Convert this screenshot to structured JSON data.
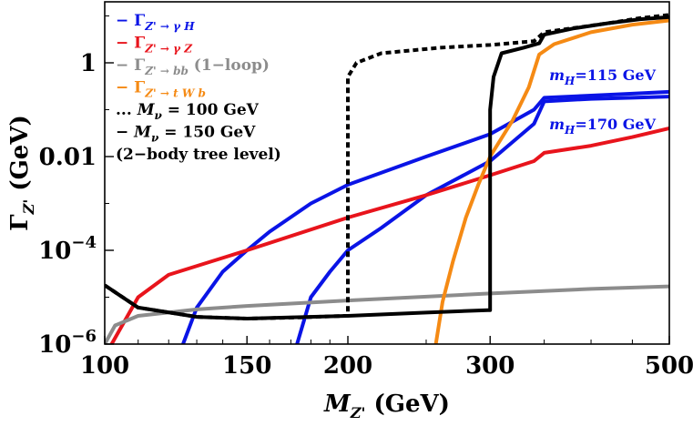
{
  "chart_data": {
    "type": "line",
    "xlabel": "M",
    "xlabel_sub": "Z'",
    "xlabel_unit": " (GeV)",
    "ylabel": "Γ",
    "ylabel_sub": "Z'",
    "ylabel_unit": " (GeV)",
    "x_scale": "log",
    "y_scale": "log",
    "xlim": [
      100,
      500
    ],
    "ylim": [
      1e-06,
      20
    ],
    "x_ticks": [
      {
        "value": 100,
        "label": "100"
      },
      {
        "value": 150,
        "label": "150"
      },
      {
        "value": 200,
        "label": "200"
      },
      {
        "value": 300,
        "label": "300"
      },
      {
        "value": 500,
        "label": "500"
      }
    ],
    "y_ticks": [
      {
        "value": 1e-06,
        "base": "10",
        "exp": "−6"
      },
      {
        "value": 0.0001,
        "base": "10",
        "exp": "−4"
      },
      {
        "value": 0.01,
        "label": "0.01"
      },
      {
        "value": 1,
        "label": "1"
      }
    ],
    "grid": false,
    "legend_position": "top-left",
    "legend": [
      {
        "marker": "−",
        "symbol": "Γ",
        "sub": "Z' → γ H",
        "text": "",
        "color": "#0a14e6"
      },
      {
        "marker": "−",
        "symbol": "Γ",
        "sub": "Z' → γ Z",
        "text": "",
        "color": "#e8141c"
      },
      {
        "marker": "−",
        "symbol": "Γ",
        "sub": "Z' → bb",
        "text": " (1−loop)",
        "color": "#8c8c8c"
      },
      {
        "marker": "−",
        "symbol": "Γ",
        "sub": "Z' → t W b",
        "text": "",
        "color": "#f58a14"
      },
      {
        "marker": "...",
        "symbol": "M",
        "sub": "ν",
        "text": " = 100 GeV",
        "color": "#000000"
      },
      {
        "marker": "−",
        "symbol": "M",
        "sub": "ν",
        "text": " = 150 GeV",
        "color": "#000000"
      },
      {
        "marker": "",
        "symbol": "",
        "sub": "",
        "text": "(2−body tree level)",
        "color": "#000000"
      }
    ],
    "annotations": [
      {
        "symbol": "m",
        "sub": "H",
        "text": "=115 GeV",
        "x": 355,
        "y": 0.43,
        "color": "#0a14e6"
      },
      {
        "symbol": "m",
        "sub": "H",
        "text": "=170 GeV",
        "x": 355,
        "y": 0.038,
        "color": "#0a14e6"
      }
    ],
    "series": [
      {
        "name": "Γ Z'→γH, mH=115 GeV",
        "color": "#0a14e6",
        "style": "solid",
        "points": [
          [
            125,
            1e-06
          ],
          [
            130,
            6e-06
          ],
          [
            140,
            3.5e-05
          ],
          [
            150,
            0.0001
          ],
          [
            160,
            0.00025
          ],
          [
            180,
            0.001
          ],
          [
            200,
            0.0025
          ],
          [
            250,
            0.01
          ],
          [
            300,
            0.03
          ],
          [
            340,
            0.1
          ],
          [
            350,
            0.18
          ],
          [
            400,
            0.2
          ],
          [
            450,
            0.22
          ],
          [
            500,
            0.24
          ]
        ]
      },
      {
        "name": "Γ Z'→γH, mH=170 GeV",
        "color": "#0a14e6",
        "style": "solid",
        "points": [
          [
            173,
            1e-06
          ],
          [
            180,
            1e-05
          ],
          [
            190,
            3.5e-05
          ],
          [
            200,
            0.0001
          ],
          [
            220,
            0.0003
          ],
          [
            250,
            0.0015
          ],
          [
            300,
            0.008
          ],
          [
            340,
            0.05
          ],
          [
            350,
            0.15
          ],
          [
            400,
            0.17
          ],
          [
            450,
            0.18
          ],
          [
            500,
            0.19
          ]
        ]
      },
      {
        "name": "Γ Z'→γZ",
        "color": "#e8141c",
        "style": "solid",
        "points": [
          [
            102,
            1e-06
          ],
          [
            110,
            1e-05
          ],
          [
            120,
            3e-05
          ],
          [
            150,
            0.0001
          ],
          [
            200,
            0.0005
          ],
          [
            250,
            0.0015
          ],
          [
            300,
            0.004
          ],
          [
            340,
            0.008
          ],
          [
            350,
            0.012
          ],
          [
            400,
            0.017
          ],
          [
            450,
            0.026
          ],
          [
            500,
            0.04
          ]
        ]
      },
      {
        "name": "Γ Z'→bb (1-loop)",
        "color": "#8c8c8c",
        "style": "solid",
        "points": [
          [
            100,
            1e-06
          ],
          [
            103,
            2.5e-06
          ],
          [
            110,
            4e-06
          ],
          [
            130,
            5.5e-06
          ],
          [
            150,
            6.5e-06
          ],
          [
            200,
            8.5e-06
          ],
          [
            300,
            1.2e-05
          ],
          [
            400,
            1.5e-05
          ],
          [
            500,
            1.7e-05
          ]
        ]
      },
      {
        "name": "Γ Z'→tWb",
        "color": "#f58a14",
        "style": "solid",
        "points": [
          [
            257,
            1e-06
          ],
          [
            262,
            8e-06
          ],
          [
            270,
            6e-05
          ],
          [
            280,
            0.0005
          ],
          [
            290,
            0.0025
          ],
          [
            300,
            0.01
          ],
          [
            320,
            0.06
          ],
          [
            335,
            0.3
          ],
          [
            345,
            1.5
          ],
          [
            360,
            2.5
          ],
          [
            400,
            4.5
          ],
          [
            450,
            6.5
          ],
          [
            500,
            8
          ]
        ]
      },
      {
        "name": "M_ν = 100 GeV",
        "color": "#000000",
        "style": "dashed",
        "points": [
          [
            100,
            1.8e-05
          ],
          [
            110,
            6e-06
          ],
          [
            130,
            3.8e-06
          ],
          [
            150,
            3.5e-06
          ],
          [
            175,
            3.7e-06
          ],
          [
            198,
            4e-06
          ],
          [
            200,
            4e-06
          ],
          [
            200,
            0.5
          ],
          [
            205,
            1
          ],
          [
            220,
            1.6
          ],
          [
            260,
            2.1
          ],
          [
            300,
            2.4
          ],
          [
            340,
            2.9
          ],
          [
            350,
            4.5
          ],
          [
            380,
            5.5
          ],
          [
            420,
            7
          ],
          [
            460,
            9
          ],
          [
            500,
            10.5
          ]
        ]
      },
      {
        "name": "M_ν = 150 GeV",
        "color": "#000000",
        "style": "solid",
        "points": [
          [
            100,
            1.8e-05
          ],
          [
            110,
            6e-06
          ],
          [
            130,
            3.8e-06
          ],
          [
            150,
            3.5e-06
          ],
          [
            200,
            4e-06
          ],
          [
            250,
            4.7e-06
          ],
          [
            298,
            5.3e-06
          ],
          [
            300,
            5.3e-06
          ],
          [
            300,
            0.1
          ],
          [
            303,
            0.5
          ],
          [
            310,
            1.6
          ],
          [
            330,
            2.1
          ],
          [
            345,
            2.6
          ],
          [
            350,
            4
          ],
          [
            380,
            5.4
          ],
          [
            420,
            7
          ],
          [
            460,
            8.5
          ],
          [
            500,
            9.5
          ]
        ]
      }
    ]
  }
}
